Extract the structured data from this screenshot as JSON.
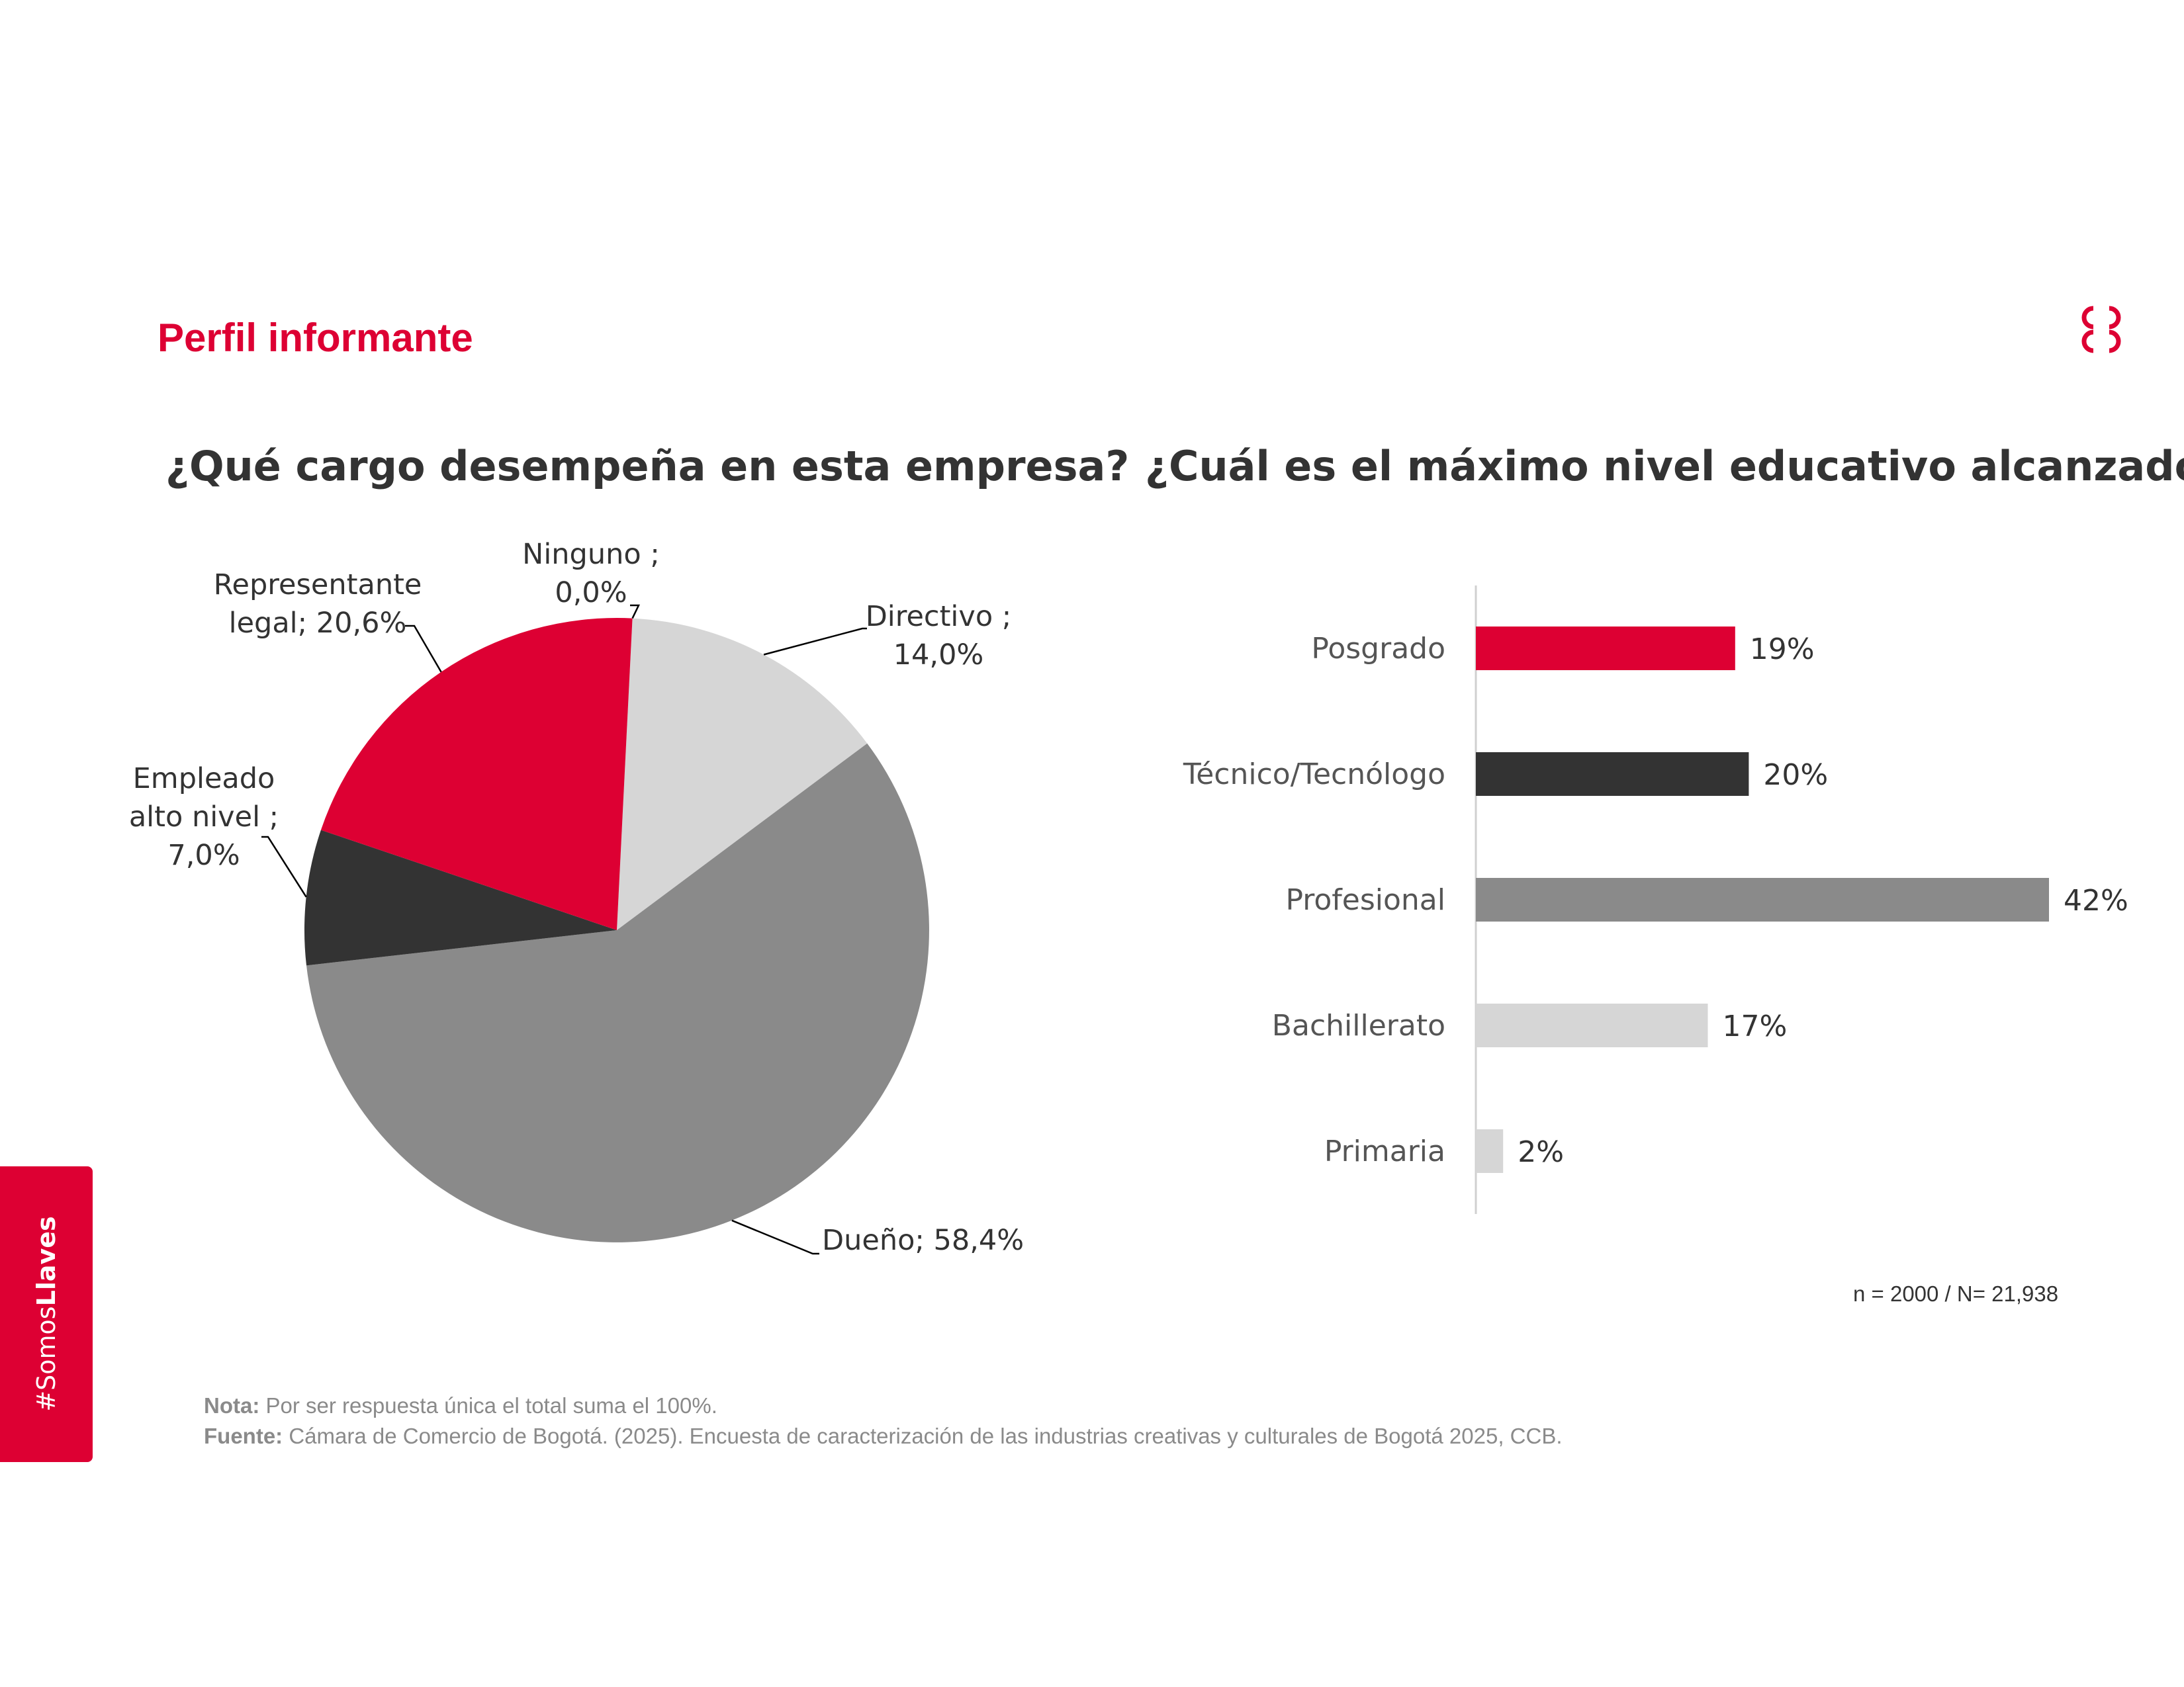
{
  "page": {
    "title": "Perfil informante",
    "logo_icon": "ccb-logo-icon",
    "brand_color": "#dd0033"
  },
  "chart_data": [
    {
      "type": "pie",
      "title": "¿Qué cargo desempeña en esta empresa?",
      "slices": [
        {
          "name": "Ninguno",
          "value": 0.0,
          "line1": "Ninguno ;",
          "line2": "0,0%",
          "color": "#d9d9d9"
        },
        {
          "name": "Directivo",
          "value": 14.0,
          "line1": "Directivo ;",
          "line2": "14,0%",
          "color": "#d6d6d6"
        },
        {
          "name": "Dueño",
          "value": 58.4,
          "line1": "Dueño; 58,4%",
          "line2": "",
          "color": "#8a8a8a"
        },
        {
          "name": "Empleado alto nivel",
          "value": 7.0,
          "line1": "Empleado",
          "line2": "alto nivel ;",
          "line3": "7,0%",
          "color": "#333333"
        },
        {
          "name": "Representante legal",
          "value": 20.6,
          "line1": "Representante",
          "line2": "legal; 20,6%",
          "color": "#dd0033"
        }
      ]
    },
    {
      "type": "bar",
      "orientation": "horizontal",
      "title": "¿Cuál es el máximo nivel educativo alcanzado?:",
      "categories": [
        "Posgrado",
        "Técnico/Tecnólogo",
        "Profesional",
        "Bachillerato",
        "Primaria"
      ],
      "values": [
        19,
        20,
        42,
        17,
        2
      ],
      "value_labels": [
        "19%",
        "20%",
        "42%",
        "17%",
        "2%"
      ],
      "colors": [
        "#dd0033",
        "#333333",
        "#8a8a8a",
        "#d6d6d6",
        "#d6d6d6"
      ],
      "xlim": [
        0,
        42
      ],
      "unit": "%"
    }
  ],
  "sample_note": "n = 2000 / N= 21,938",
  "footnotes": {
    "note_label": "Nota:",
    "note_text": " Por ser respuesta única el total suma el 100%.",
    "source_label": "Fuente:",
    "source_text": " Cámara de Comercio de Bogotá. (2025). Encuesta de caracterización de las industrias creativas y culturales de Bogotá 2025, CCB."
  },
  "side_tab": {
    "prefix": "#Somos",
    "bold": "Llaves"
  }
}
